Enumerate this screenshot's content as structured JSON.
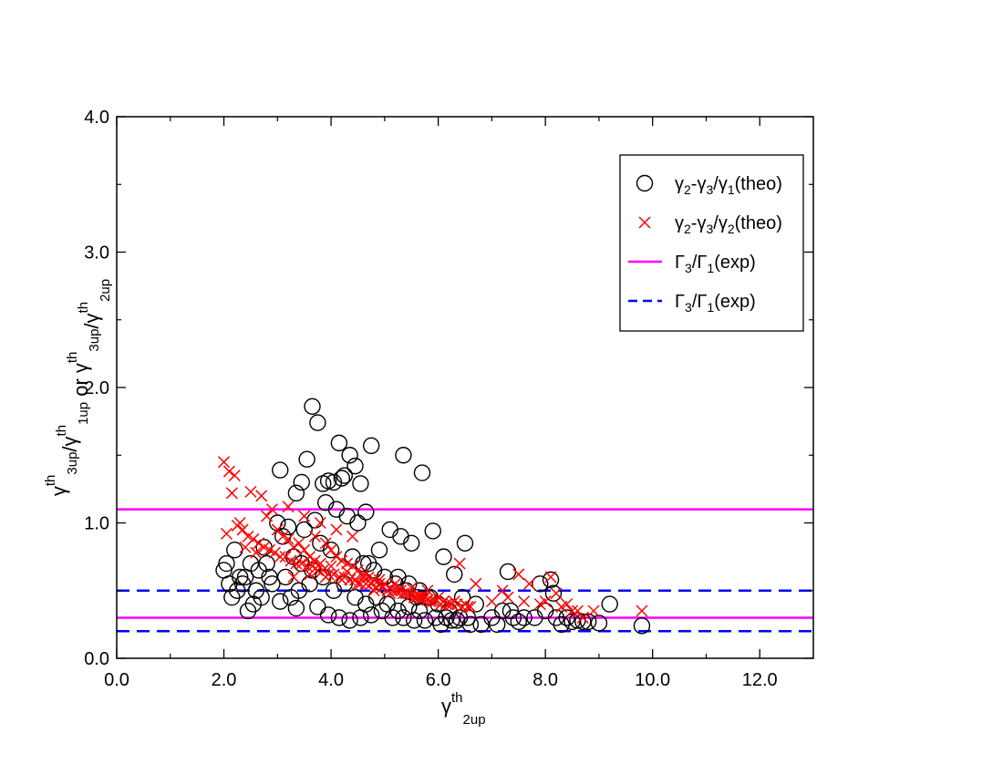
{
  "chart_data": {
    "type": "scatter",
    "xlabel": {
      "main": "γ",
      "sup": "th",
      "sub": "2up"
    },
    "ylabel_parts": [
      {
        "main": "γ",
        "sup": "th",
        "sub": "3up"
      },
      {
        "text": "/"
      },
      {
        "main": "γ",
        "sup": "th",
        "sub": "1up"
      },
      {
        "text": " or "
      },
      {
        "main": "γ",
        "sup": "th",
        "sub": "3up"
      },
      {
        "text": "/"
      },
      {
        "main": "γ",
        "sup": "th",
        "sub": "2up"
      }
    ],
    "xlim": [
      0,
      13
    ],
    "ylim": [
      0,
      4
    ],
    "xticks": [
      "0.0",
      "2.0",
      "4.0",
      "6.0",
      "8.0",
      "10.0",
      "12.0"
    ],
    "xtick_values": [
      0,
      2,
      4,
      6,
      8,
      10,
      12
    ],
    "yticks": [
      "0.0",
      "1.0",
      "2.0",
      "3.0",
      "4.0"
    ],
    "ytick_values": [
      0,
      1,
      2,
      3,
      4
    ],
    "grid": false,
    "legend_position": "top-right",
    "legend": [
      {
        "marker": "circle",
        "color": "#000000",
        "parts": [
          {
            "t": "γ"
          },
          {
            "s": "2"
          },
          {
            "t": "-γ"
          },
          {
            "s": "3"
          },
          {
            "t": "/γ"
          },
          {
            "s": "1"
          },
          {
            "t": "(theo)"
          }
        ]
      },
      {
        "marker": "x",
        "color": "#ff0000",
        "parts": [
          {
            "t": "γ"
          },
          {
            "s": "2"
          },
          {
            "t": "-γ"
          },
          {
            "s": "3"
          },
          {
            "t": "/γ"
          },
          {
            "s": "2"
          },
          {
            "t": "(theo)"
          }
        ]
      },
      {
        "marker": "line",
        "color": "#ff00ff",
        "parts": [
          {
            "t": "Γ"
          },
          {
            "s": "3"
          },
          {
            "t": "/Γ"
          },
          {
            "s": "1"
          },
          {
            "t": "(exp)"
          }
        ]
      },
      {
        "marker": "dash",
        "color": "#0000ff",
        "parts": [
          {
            "t": "Γ"
          },
          {
            "s": "3"
          },
          {
            "t": "/Γ"
          },
          {
            "s": "1"
          },
          {
            "t": "(exp)"
          }
        ]
      }
    ],
    "hlines": [
      {
        "y": 1.1,
        "color": "#ff00ff",
        "style": "solid"
      },
      {
        "y": 0.3,
        "color": "#ff00ff",
        "style": "solid"
      },
      {
        "y": 0.5,
        "color": "#0000ff",
        "style": "dashed"
      },
      {
        "y": 0.2,
        "color": "#0000ff",
        "style": "dashed"
      }
    ],
    "series": [
      {
        "marker": "circle",
        "color": "#000000",
        "x": [
          3.65,
          3.75,
          3.55,
          4.15,
          4.75,
          5.35,
          5.7,
          3.05,
          4.45,
          4.35,
          4.2,
          3.95,
          3.85,
          4.05,
          4.25,
          3.45,
          3.35,
          4.55,
          4.65,
          3.9,
          4.1,
          4.3,
          4.5,
          3.7,
          3.2,
          3.0,
          2.75,
          2.5,
          2.3,
          2.1,
          2.0,
          2.2,
          2.4,
          2.6,
          2.8,
          3.1,
          3.3,
          3.5,
          3.8,
          4.0,
          4.4,
          4.6,
          4.8,
          5.0,
          5.2,
          5.4,
          5.6,
          5.8,
          6.0,
          6.2,
          6.4,
          6.6,
          6.8,
          7.0,
          7.2,
          7.4,
          7.6,
          7.8,
          8.0,
          8.2,
          8.4,
          8.6,
          8.8,
          9.0,
          9.2,
          9.8,
          5.1,
          5.3,
          5.5,
          5.9,
          6.1,
          6.3,
          6.5,
          4.9,
          4.7,
          5.25,
          5.45,
          5.65,
          5.85,
          6.45,
          6.7,
          7.3,
          7.35,
          8.1,
          8.15,
          7.9,
          3.6,
          3.4,
          3.25,
          3.15,
          2.9,
          2.7,
          2.55,
          2.35,
          2.15,
          2.05,
          2.25,
          2.45,
          2.65,
          2.85,
          3.05,
          3.35,
          3.75,
          3.95,
          4.15,
          4.35,
          4.55,
          4.75,
          4.95,
          5.15,
          5.35,
          5.55,
          5.75,
          5.95,
          6.15,
          6.35,
          6.55,
          4.05,
          4.25,
          4.45,
          4.65,
          3.85,
          3.65,
          3.45,
          5.05,
          5.25,
          5.45,
          4.85,
          5.65,
          6.05,
          6.25,
          7.1,
          7.5,
          8.3,
          8.5,
          8.7
        ],
        "y": [
          1.86,
          1.74,
          1.47,
          1.59,
          1.57,
          1.5,
          1.37,
          1.39,
          1.42,
          1.5,
          1.33,
          1.31,
          1.29,
          1.3,
          1.35,
          1.3,
          1.22,
          1.29,
          1.08,
          1.15,
          1.1,
          1.05,
          1.0,
          1.02,
          0.97,
          1.0,
          0.82,
          0.7,
          0.6,
          0.55,
          0.65,
          0.8,
          0.6,
          0.5,
          0.7,
          0.9,
          0.75,
          0.95,
          0.85,
          0.8,
          0.75,
          0.7,
          0.65,
          0.6,
          0.55,
          0.5,
          0.45,
          0.45,
          0.4,
          0.35,
          0.3,
          0.25,
          0.25,
          0.3,
          0.35,
          0.3,
          0.3,
          0.3,
          0.35,
          0.3,
          0.3,
          0.28,
          0.27,
          0.26,
          0.4,
          0.24,
          0.95,
          0.9,
          0.85,
          0.94,
          0.75,
          0.62,
          0.85,
          0.8,
          0.7,
          0.6,
          0.55,
          0.5,
          0.45,
          0.45,
          0.4,
          0.64,
          0.35,
          0.58,
          0.48,
          0.55,
          0.55,
          0.5,
          0.45,
          0.6,
          0.55,
          0.45,
          0.4,
          0.55,
          0.45,
          0.7,
          0.5,
          0.35,
          0.65,
          0.6,
          0.42,
          0.37,
          0.38,
          0.32,
          0.3,
          0.28,
          0.3,
          0.32,
          0.35,
          0.3,
          0.3,
          0.28,
          0.28,
          0.3,
          0.3,
          0.28,
          0.3,
          0.5,
          0.55,
          0.45,
          0.4,
          0.6,
          0.65,
          0.7,
          0.4,
          0.35,
          0.38,
          0.45,
          0.35,
          0.25,
          0.28,
          0.25,
          0.27,
          0.25,
          0.27,
          0.27
        ]
      },
      {
        "marker": "x",
        "color": "#ff0000",
        "x": [
          2.0,
          2.1,
          2.2,
          2.15,
          2.05,
          2.3,
          2.4,
          2.5,
          2.6,
          2.7,
          2.8,
          2.9,
          3.0,
          3.1,
          3.2,
          3.3,
          3.4,
          3.5,
          3.6,
          3.7,
          3.8,
          3.9,
          4.0,
          4.1,
          4.2,
          4.3,
          4.4,
          4.5,
          4.6,
          4.7,
          4.8,
          4.9,
          5.0,
          5.1,
          5.2,
          5.3,
          5.4,
          5.5,
          5.6,
          5.7,
          5.8,
          5.9,
          6.0,
          6.1,
          6.2,
          6.3,
          6.4,
          6.5,
          6.6,
          6.7,
          7.2,
          7.5,
          7.7,
          7.9,
          8.1,
          8.3,
          8.5,
          8.7,
          8.9,
          9.8,
          2.25,
          2.35,
          2.45,
          2.55,
          2.65,
          2.75,
          2.85,
          2.95,
          3.05,
          3.15,
          3.25,
          3.35,
          3.45,
          3.55,
          3.65,
          3.75,
          3.85,
          3.95,
          4.05,
          4.15,
          4.25,
          4.35,
          4.45,
          4.55,
          4.65,
          4.75,
          4.85,
          4.95,
          5.05,
          5.15,
          5.25,
          5.35,
          5.45,
          5.55,
          5.65,
          5.75,
          5.85,
          5.95,
          6.05,
          6.15,
          6.25,
          6.35,
          6.45,
          6.55,
          7.0,
          7.3,
          7.6,
          8.0,
          8.2,
          8.4,
          8.6,
          3.2,
          3.5,
          3.8,
          4.1,
          4.4,
          3.6,
          3.9,
          4.2,
          4.5,
          4.8,
          5.1,
          3.3,
          3.7,
          4.0,
          4.3,
          4.6,
          4.9,
          5.2,
          5.5,
          5.8
        ],
        "y": [
          1.45,
          1.38,
          1.35,
          1.22,
          0.92,
          1.0,
          0.82,
          1.23,
          0.78,
          1.2,
          1.05,
          1.1,
          0.95,
          0.9,
          0.88,
          0.82,
          0.85,
          0.8,
          0.75,
          0.9,
          0.7,
          0.85,
          0.8,
          0.75,
          0.72,
          0.7,
          0.68,
          0.65,
          0.62,
          0.6,
          0.58,
          0.55,
          0.55,
          0.52,
          0.5,
          0.5,
          0.48,
          0.47,
          0.45,
          0.45,
          0.43,
          0.42,
          0.45,
          0.42,
          0.4,
          0.42,
          0.7,
          0.4,
          0.38,
          0.55,
          0.5,
          0.62,
          0.55,
          0.4,
          0.6,
          0.38,
          0.35,
          0.3,
          0.35,
          0.35,
          0.98,
          0.95,
          0.9,
          0.88,
          0.85,
          0.82,
          0.8,
          0.78,
          0.75,
          0.75,
          0.72,
          0.7,
          0.7,
          0.68,
          0.68,
          0.65,
          0.65,
          0.62,
          0.62,
          0.6,
          0.6,
          0.58,
          0.58,
          0.55,
          0.55,
          0.55,
          0.52,
          0.52,
          0.5,
          0.5,
          0.5,
          0.48,
          0.48,
          0.45,
          0.45,
          0.45,
          0.42,
          0.42,
          0.4,
          0.4,
          0.4,
          0.4,
          0.38,
          0.38,
          0.42,
          0.45,
          0.42,
          0.42,
          0.48,
          0.4,
          0.35,
          1.12,
          1.05,
          1.0,
          0.95,
          0.9,
          0.62,
          0.6,
          0.58,
          0.55,
          0.5,
          0.48,
          0.6,
          0.72,
          0.68,
          0.64,
          0.6,
          0.58,
          0.55,
          0.52,
          0.5
        ]
      }
    ]
  }
}
